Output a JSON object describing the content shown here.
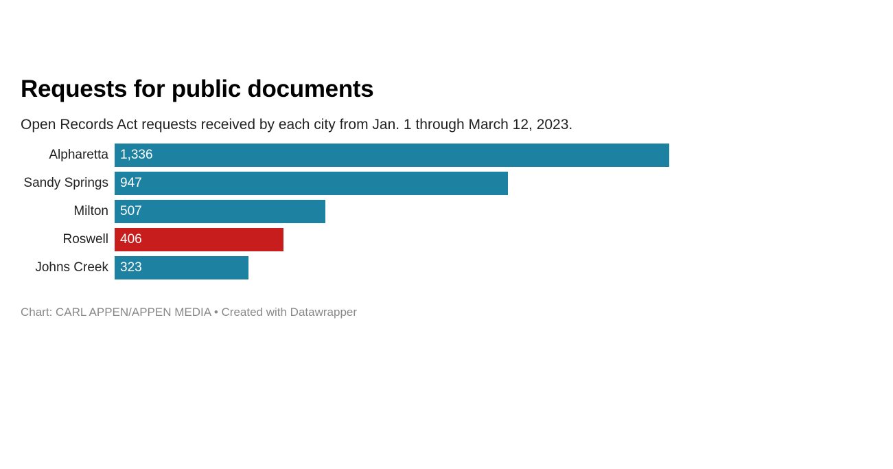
{
  "chart_data": {
    "type": "bar",
    "orientation": "horizontal",
    "title": "Requests for public documents",
    "subtitle": "Open Records Act requests received by each city from Jan. 1 through March 12, 2023.",
    "categories": [
      "Alpharetta",
      "Sandy Springs",
      "Milton",
      "Roswell",
      "Johns Creek"
    ],
    "values": [
      1336,
      947,
      507,
      406,
      323
    ],
    "value_labels": [
      "1,336",
      "947",
      "507",
      "406",
      "323"
    ],
    "colors": [
      "#1d81a2",
      "#1d81a2",
      "#1d81a2",
      "#c71e1d",
      "#1d81a2"
    ],
    "xlim": [
      0,
      1336
    ],
    "grid": false,
    "legend": "none"
  },
  "source": {
    "text": "Chart: CARL APPEN/APPEN MEDIA • Created with Datawrapper"
  }
}
